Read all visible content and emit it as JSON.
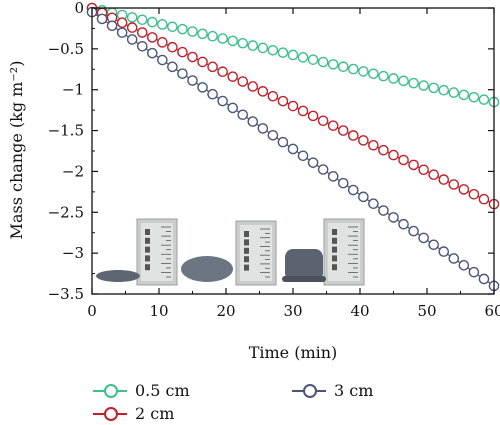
{
  "chart_data": {
    "type": "line",
    "xlabel": "Time (min)",
    "ylabel": "Mass change (kg m⁻²)",
    "xlim": [
      0,
      60
    ],
    "ylim": [
      -3.5,
      0
    ],
    "x_ticks": [
      0,
      10,
      20,
      30,
      40,
      50,
      60
    ],
    "y_ticks": [
      0,
      -0.5,
      -1,
      -1.5,
      -2,
      -2.5,
      -3,
      -3.5
    ],
    "x_tick_labels": [
      "0",
      "10",
      "20",
      "30",
      "40",
      "50",
      "60"
    ],
    "y_tick_labels": [
      "0",
      "−0.5",
      "−1",
      "−1.5",
      "−2",
      "−2.5",
      "−3",
      "−3.5"
    ],
    "legend_position": "bottom",
    "grid": false,
    "marker": "open-circle",
    "series": [
      {
        "name": "0.5 cm",
        "color": "#3dbf8a",
        "x_start": 0,
        "x_end": 60,
        "x_step": 1.5,
        "y_start": 0.0,
        "y_end": -1.15
      },
      {
        "name": "2 cm",
        "color": "#c0202a",
        "x_start": 0,
        "x_end": 60,
        "x_step": 1.5,
        "y_start": 0.0,
        "y_end": -2.4
      },
      {
        "name": "3 cm",
        "color": "#4a5577",
        "x_start": 0,
        "x_end": 60,
        "x_step": 1.5,
        "y_start": -0.05,
        "y_end": -3.4
      }
    ]
  }
}
